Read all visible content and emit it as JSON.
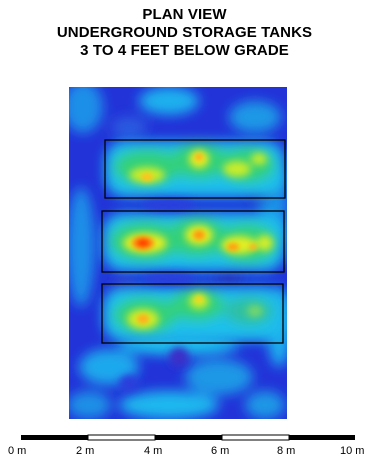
{
  "title": {
    "line1": "PLAN VIEW",
    "line2": "UNDERGROUND STORAGE TANKS",
    "line3": "3 TO 4 FEET BELOW GRADE"
  },
  "colors": {
    "low": "#1f2fd6",
    "mid_low": "#1aa6ee",
    "mid": "#33d07a",
    "mid_high": "#d8ee26",
    "high": "#ff3a00",
    "outline": "#000000"
  },
  "map": {
    "tank_count": 3
  },
  "scale_bar": {
    "labels": [
      "0 m",
      "2 m",
      "4 m",
      "6 m",
      "8 m",
      "10 m"
    ]
  }
}
